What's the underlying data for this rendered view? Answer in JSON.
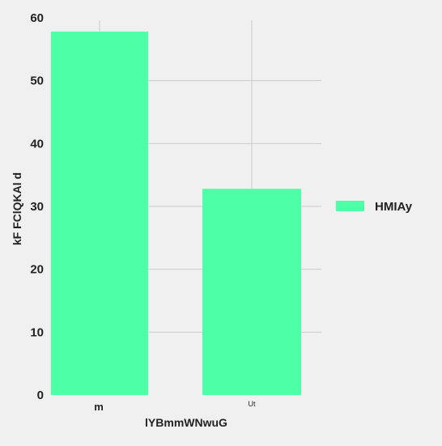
{
  "chart_data": {
    "type": "bar",
    "categories": [
      "m",
      "Ut"
    ],
    "series": [
      {
        "name": "HMIAy",
        "values": [
          57.8,
          32.8
        ]
      }
    ],
    "xlabel": "lYBmmWNwuG",
    "ylabel": "kF FClQKAl d",
    "ylim": [
      0,
      60
    ],
    "yticks": [
      0,
      10,
      20,
      30,
      40,
      50,
      60
    ],
    "grid": true,
    "legend": "right",
    "colors": {
      "bar": "#4dffa6",
      "grid": "#cbcbcb",
      "background": "#f0f0f0"
    }
  }
}
